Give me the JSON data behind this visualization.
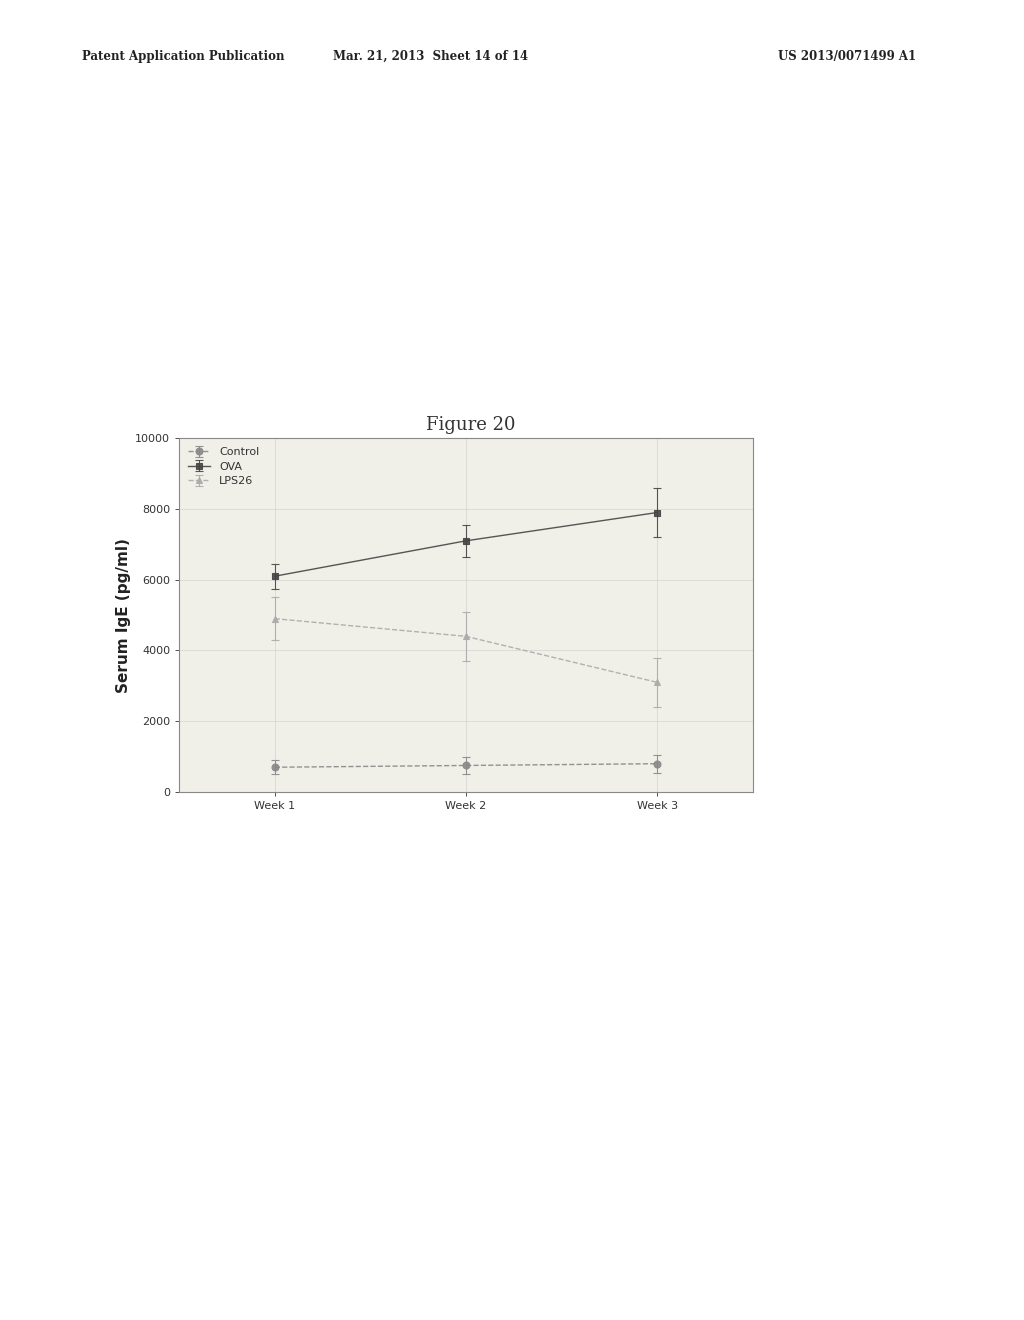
{
  "title": "Figure 20",
  "header_line1": "Patent Application Publication",
  "header_line2": "Mar. 21, 2013  Sheet 14 of 14",
  "header_line3": "US 2013/0071499 A1",
  "ylabel": "Serum IgE (pg/ml)",
  "x_labels": [
    "Week 1",
    "Week 2",
    "Week 3"
  ],
  "x_values": [
    1,
    2,
    3
  ],
  "ylim": [
    0,
    10000
  ],
  "yticks": [
    0,
    2000,
    4000,
    6000,
    8000,
    10000
  ],
  "series": [
    {
      "label": "Control",
      "y": [
        700,
        750,
        800
      ],
      "yerr": [
        200,
        250,
        250
      ],
      "color": "#888888",
      "marker": "o",
      "linestyle": "--"
    },
    {
      "label": "OVA",
      "y": [
        6100,
        7100,
        7900
      ],
      "yerr": [
        350,
        450,
        700
      ],
      "color": "#444444",
      "marker": "s",
      "linestyle": "-"
    },
    {
      "label": "LPS26",
      "y": [
        4900,
        4400,
        3100
      ],
      "yerr": [
        600,
        700,
        700
      ],
      "color": "#aaaaaa",
      "marker": "^",
      "linestyle": "--"
    }
  ],
  "background_color": "#ffffff",
  "plot_bg_color": "#f0f0e8",
  "grid_color": "#cccccc",
  "title_fontsize": 13,
  "axis_fontsize": 11,
  "legend_fontsize": 8,
  "tick_fontsize": 8
}
